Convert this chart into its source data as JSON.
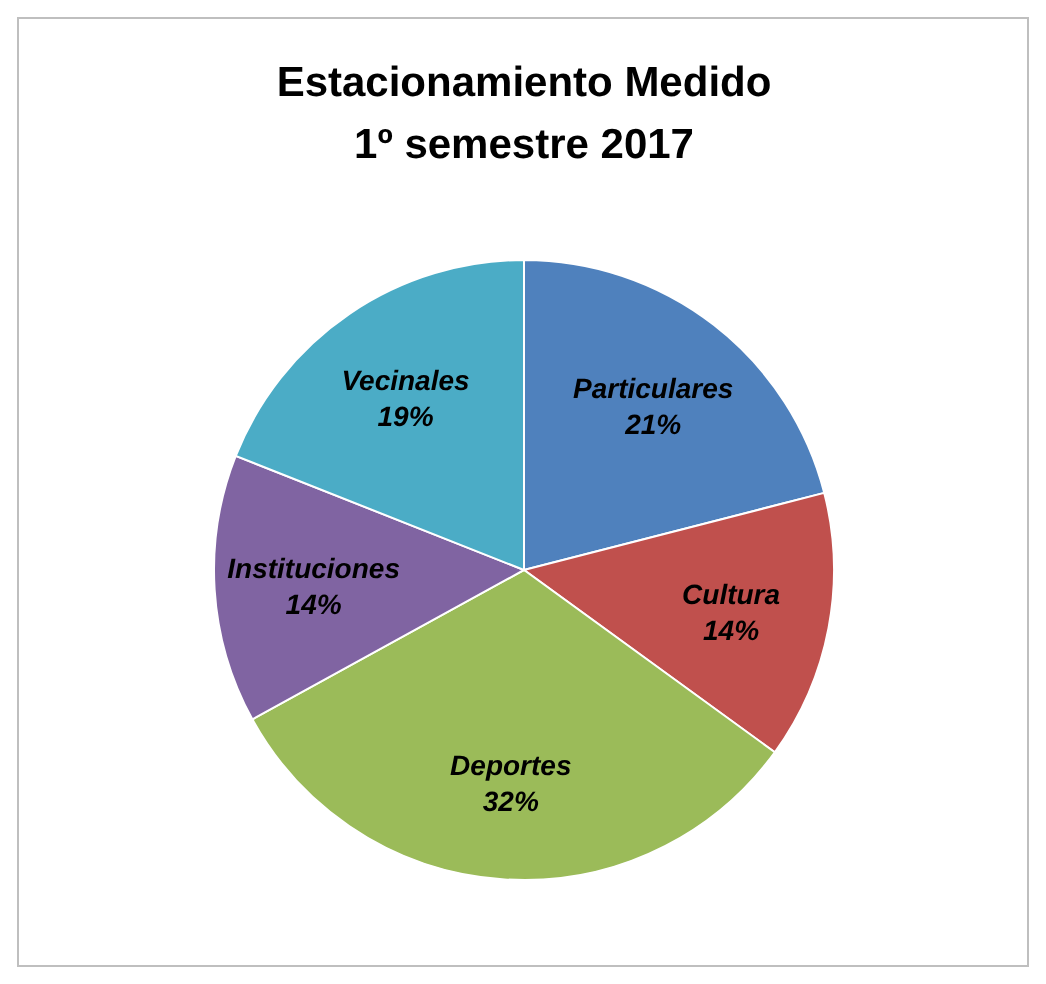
{
  "chart_data": {
    "type": "pie",
    "title": "Estacionamiento Medido",
    "subtitle": "1º semestre 2017",
    "categories": [
      "Particulares",
      "Cultura",
      "Deportes",
      "Instituciones",
      "Vecinales"
    ],
    "values": [
      21,
      14,
      32,
      14,
      19
    ],
    "colors": [
      "#4f81bd",
      "#c0504d",
      "#9bbb59",
      "#8064a2",
      "#4bacc6"
    ],
    "value_labels": [
      "21%",
      "14%",
      "32%",
      "14%",
      "19%"
    ]
  }
}
